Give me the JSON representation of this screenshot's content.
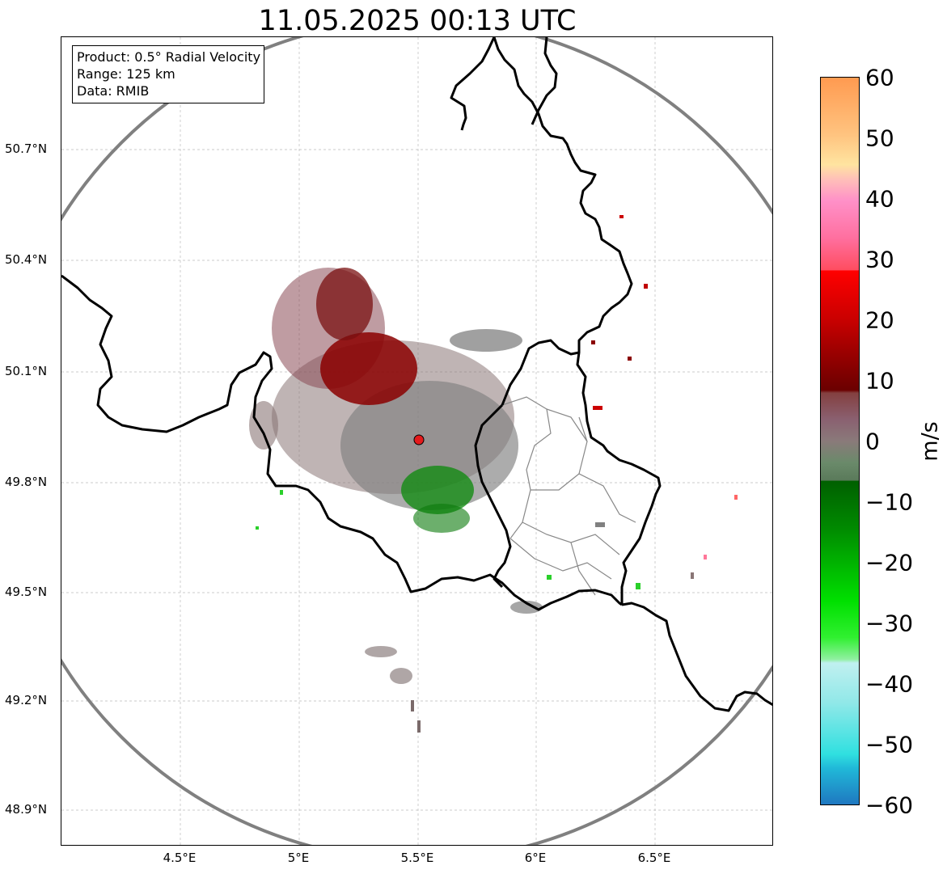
{
  "title": "11.05.2025 00:13 UTC",
  "info": {
    "product": "Product: 0.5° Radial Velocity",
    "range": "Range: 125 km",
    "data": "Data: RMIB"
  },
  "axes": {
    "lat_ticks": [
      "50.7°N",
      "50.4°N",
      "50.1°N",
      "49.8°N",
      "49.5°N",
      "49.2°N",
      "48.9°N"
    ],
    "lon_ticks": [
      "4.5°E",
      "5°E",
      "5.5°E",
      "6°E",
      "6.5°E"
    ]
  },
  "colorbar": {
    "unit": "m/s",
    "ticks": [
      "60",
      "50",
      "40",
      "30",
      "20",
      "10",
      "0",
      "−10",
      "−20",
      "−30",
      "−40",
      "−50",
      "−60"
    ],
    "min": -60,
    "max": 60
  },
  "colors": {
    "range_ring": "#808080",
    "border": "#000000",
    "admin_border": "#888888",
    "radar_site": "#e41a1c",
    "grid": "#bbbbbb"
  }
}
